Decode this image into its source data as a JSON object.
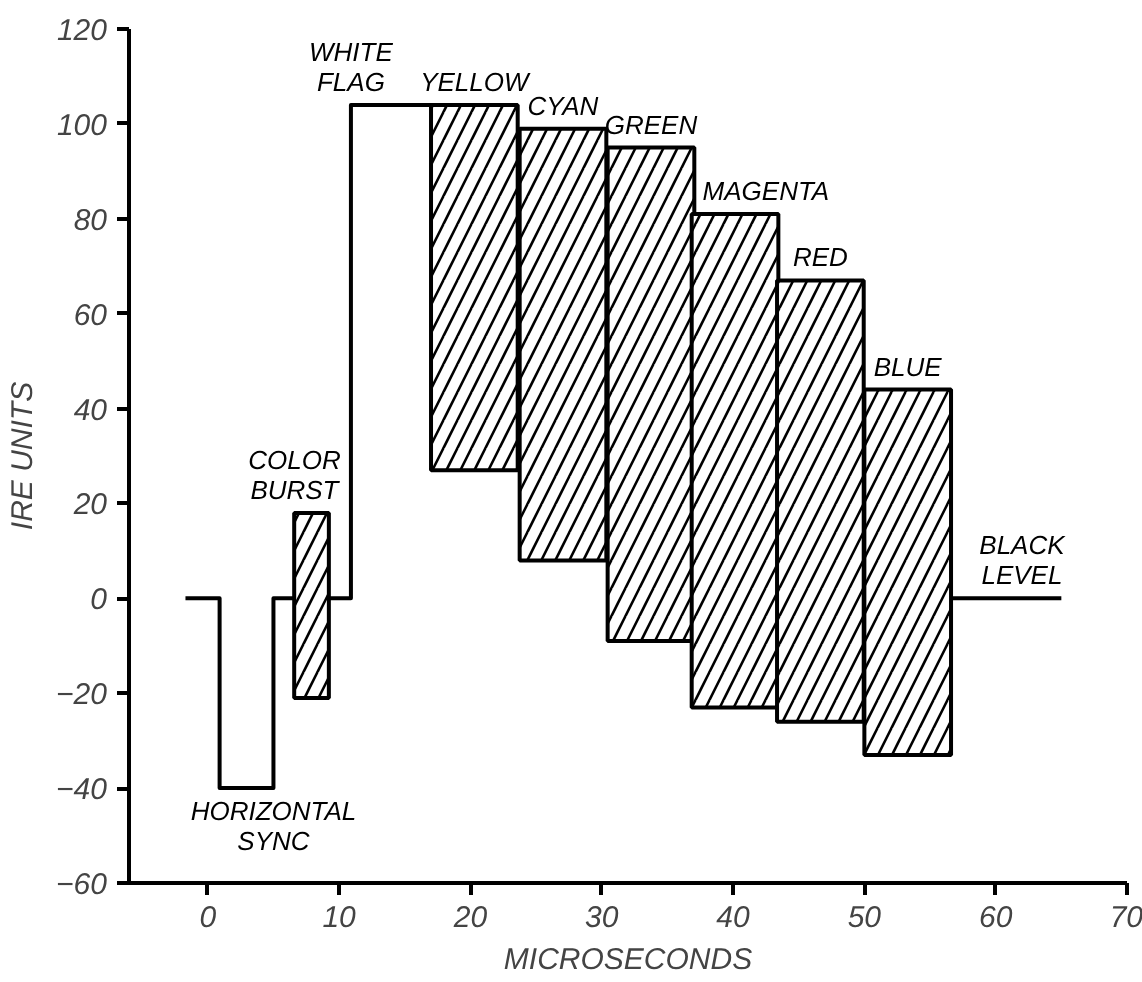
{
  "chart_data": {
    "type": "bar",
    "xlabel": "MICROSECONDS",
    "ylabel": "IRE UNITS",
    "xlim": [
      -6,
      70
    ],
    "ylim": [
      -60,
      120
    ],
    "xticks": [
      0,
      10,
      20,
      30,
      40,
      50,
      60,
      70
    ],
    "yticks": [
      -60,
      -40,
      -20,
      0,
      20,
      40,
      60,
      80,
      100,
      120
    ],
    "grid": false,
    "series": [
      {
        "type": "line",
        "color": "#000000",
        "x": [
          -1.7,
          0.9,
          0.9,
          5,
          5,
          6.6,
          7.9,
          9.2,
          10.9,
          10.9,
          17,
          36,
          56.6,
          65
        ],
        "values": [
          0,
          0,
          -40,
          -40,
          0,
          0,
          null,
          0,
          0,
          104,
          104,
          null,
          0,
          0
        ]
      },
      {
        "color": "#000000",
        "x": [
          7.9
        ],
        "base": [
          -21
        ],
        "values": [
          39
        ]
      },
      {
        "color": "#000000",
        "x": [
          20.3,
          27.05,
          33.75,
          40.15,
          46.65,
          53.3
        ],
        "base": [
          27,
          8,
          -9,
          -23,
          -26,
          -33
        ],
        "values": [
          77,
          91,
          104,
          104,
          93,
          77
        ]
      }
    ],
    "annotations": [
      {
        "text": "WHITE\nFLAG",
        "x": 10.9,
        "y": 104
      },
      {
        "text": "YELLOW",
        "x": 20.3,
        "y": 104
      },
      {
        "text": "CYAN",
        "x": 27.05,
        "y": 99
      },
      {
        "text": "GREEN",
        "x": 33.75,
        "y": 95
      },
      {
        "text": "MAGENTA",
        "x": 42.5,
        "y": 81
      },
      {
        "text": "RED",
        "x": 46.65,
        "y": 67
      },
      {
        "text": "BLUE",
        "x": 53.3,
        "y": 44
      },
      {
        "text": "COLOR\nBURST",
        "x": 6.6,
        "y": 18
      },
      {
        "text": "BLACK\nLEVEL",
        "x": 62,
        "y": 0
      },
      {
        "text": "HORIZONTAL\nSYNC",
        "x": 5,
        "y": -40
      }
    ]
  }
}
